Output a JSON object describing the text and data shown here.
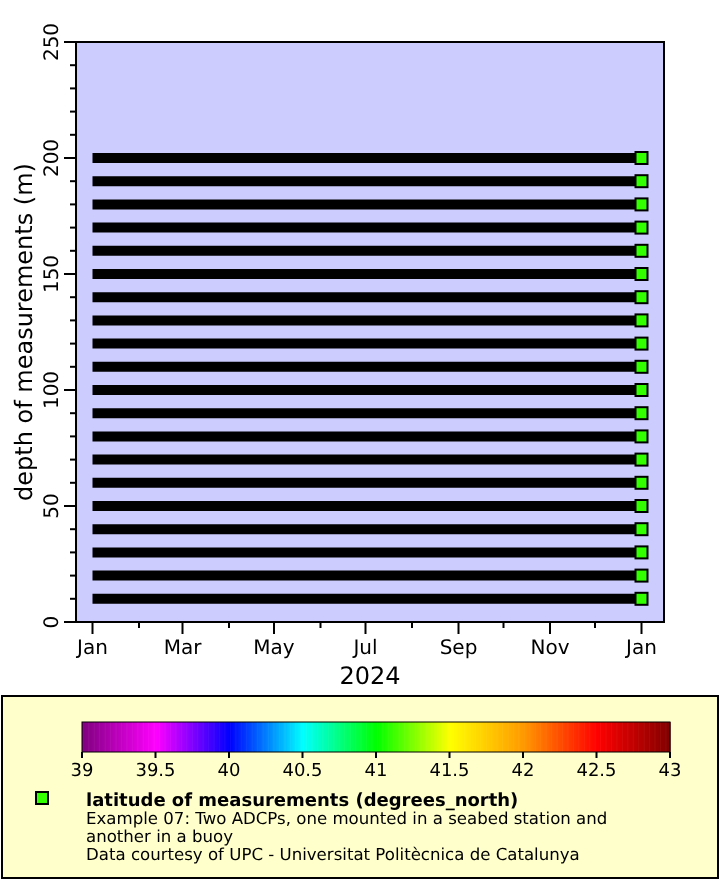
{
  "chart_data": {
    "type": "scatter",
    "xlabel": "2024",
    "ylabel": "depth of measurements (m)",
    "clabel": "latitude of measurements (degrees_north)",
    "annotations": [
      "Example 07: Two ADCPs, one mounted in a seabed station and another in a buoy",
      "Data courtesy of UPC - Universitat Politècnica de Catalunya"
    ],
    "xlim": [
      "2023-12-21",
      "2025-01-16"
    ],
    "xticks": [
      {
        "value": "2024-01-01",
        "label": "Jan"
      },
      {
        "value": "2024-02-01",
        "label": null
      },
      {
        "value": "2024-03-01",
        "label": "Mar"
      },
      {
        "value": "2024-04-01",
        "label": null
      },
      {
        "value": "2024-05-01",
        "label": "May"
      },
      {
        "value": "2024-06-01",
        "label": null
      },
      {
        "value": "2024-07-01",
        "label": "Jul"
      },
      {
        "value": "2024-08-01",
        "label": null
      },
      {
        "value": "2024-09-01",
        "label": "Sep"
      },
      {
        "value": "2024-10-01",
        "label": null
      },
      {
        "value": "2024-11-01",
        "label": "Nov"
      },
      {
        "value": "2024-12-01",
        "label": null
      },
      {
        "value": "2025-01-01",
        "label": "Jan"
      }
    ],
    "ylim": [
      0,
      250
    ],
    "yticks": [
      0,
      {
        "value": 10,
        "label": null
      },
      {
        "value": 20,
        "label": null
      },
      {
        "value": 30,
        "label": null
      },
      {
        "value": 40,
        "label": null
      },
      50,
      {
        "value": 60,
        "label": null
      },
      {
        "value": 70,
        "label": null
      },
      {
        "value": 80,
        "label": null
      },
      {
        "value": 90,
        "label": null
      },
      100,
      {
        "value": 110,
        "label": null
      },
      {
        "value": 120,
        "label": null
      },
      {
        "value": 130,
        "label": null
      },
      {
        "value": 140,
        "label": null
      },
      150,
      {
        "value": 160,
        "label": null
      },
      {
        "value": 170,
        "label": null
      },
      {
        "value": 180,
        "label": null
      },
      {
        "value": 190,
        "label": null
      },
      200,
      {
        "value": 210,
        "label": null
      },
      {
        "value": 220,
        "label": null
      },
      {
        "value": 230,
        "label": null
      },
      {
        "value": 240,
        "label": null
      },
      250
    ],
    "clim": [
      39,
      43
    ],
    "cticks": [
      39,
      39.5,
      40,
      40.5,
      41,
      41.5,
      42,
      42.5,
      43
    ],
    "series": [
      {
        "type": "line",
        "color": "#000000",
        "x": [
          "2024-01-01",
          "2024-12-31"
        ],
        "values": [
          10,
          10
        ]
      },
      {
        "type": "line",
        "color": "#000000",
        "x": [
          "2024-01-01",
          "2024-12-31"
        ],
        "values": [
          20,
          20
        ]
      },
      {
        "type": "line",
        "color": "#000000",
        "x": [
          "2024-01-01",
          "2024-12-31"
        ],
        "values": [
          30,
          30
        ]
      },
      {
        "type": "line",
        "color": "#000000",
        "x": [
          "2024-01-01",
          "2024-12-31"
        ],
        "values": [
          40,
          40
        ]
      },
      {
        "type": "line",
        "color": "#000000",
        "x": [
          "2024-01-01",
          "2024-12-31"
        ],
        "values": [
          50,
          50
        ]
      },
      {
        "type": "line",
        "color": "#000000",
        "x": [
          "2024-01-01",
          "2024-12-31"
        ],
        "values": [
          60,
          60
        ]
      },
      {
        "type": "line",
        "color": "#000000",
        "x": [
          "2024-01-01",
          "2024-12-31"
        ],
        "values": [
          70,
          70
        ]
      },
      {
        "type": "line",
        "color": "#000000",
        "x": [
          "2024-01-01",
          "2024-12-31"
        ],
        "values": [
          80,
          80
        ]
      },
      {
        "type": "line",
        "color": "#000000",
        "x": [
          "2024-01-01",
          "2024-12-31"
        ],
        "values": [
          90,
          90
        ]
      },
      {
        "type": "line",
        "color": "#000000",
        "x": [
          "2024-01-01",
          "2024-12-31"
        ],
        "values": [
          100,
          100
        ]
      },
      {
        "type": "line",
        "color": "#000000",
        "x": [
          "2024-01-01",
          "2024-12-31"
        ],
        "values": [
          110,
          110
        ]
      },
      {
        "type": "line",
        "color": "#000000",
        "x": [
          "2024-01-01",
          "2024-12-31"
        ],
        "values": [
          120,
          120
        ]
      },
      {
        "type": "line",
        "color": "#000000",
        "x": [
          "2024-01-01",
          "2024-12-31"
        ],
        "values": [
          130,
          130
        ]
      },
      {
        "type": "line",
        "color": "#000000",
        "x": [
          "2024-01-01",
          "2024-12-31"
        ],
        "values": [
          140,
          140
        ]
      },
      {
        "type": "line",
        "color": "#000000",
        "x": [
          "2024-01-01",
          "2024-12-31"
        ],
        "values": [
          150,
          150
        ]
      },
      {
        "type": "line",
        "color": "#000000",
        "x": [
          "2024-01-01",
          "2024-12-31"
        ],
        "values": [
          160,
          160
        ]
      },
      {
        "type": "line",
        "color": "#000000",
        "x": [
          "2024-01-01",
          "2024-12-31"
        ],
        "values": [
          170,
          170
        ]
      },
      {
        "type": "line",
        "color": "#000000",
        "x": [
          "2024-01-01",
          "2024-12-31"
        ],
        "values": [
          180,
          180
        ]
      },
      {
        "type": "line",
        "color": "#000000",
        "x": [
          "2024-01-01",
          "2024-12-31"
        ],
        "values": [
          190,
          190
        ]
      },
      {
        "type": "line",
        "color": "#000000",
        "x": [
          "2024-01-01",
          "2024-12-31"
        ],
        "values": [
          200,
          200
        ]
      },
      {
        "marker": "square",
        "x": [
          "2025-01-01",
          "2025-01-01",
          "2025-01-01",
          "2025-01-01",
          "2025-01-01",
          "2025-01-01",
          "2025-01-01",
          "2025-01-01",
          "2025-01-01",
          "2025-01-01",
          "2025-01-01",
          "2025-01-01",
          "2025-01-01",
          "2025-01-01",
          "2025-01-01",
          "2025-01-01",
          "2025-01-01",
          "2025-01-01",
          "2025-01-01",
          "2025-01-01"
        ],
        "values": [
          10,
          20,
          30,
          40,
          50,
          60,
          70,
          80,
          90,
          100,
          110,
          120,
          130,
          140,
          150,
          160,
          170,
          180,
          190,
          200
        ],
        "cvalues": [
          41.1,
          41.1,
          41.1,
          41.1,
          41.1,
          41.1,
          41.1,
          41.1,
          41.1,
          41.1,
          41.1,
          41.1,
          41.1,
          41.1,
          41.1,
          41.1,
          41.1,
          41.1,
          41.1,
          41.1
        ]
      }
    ]
  }
}
